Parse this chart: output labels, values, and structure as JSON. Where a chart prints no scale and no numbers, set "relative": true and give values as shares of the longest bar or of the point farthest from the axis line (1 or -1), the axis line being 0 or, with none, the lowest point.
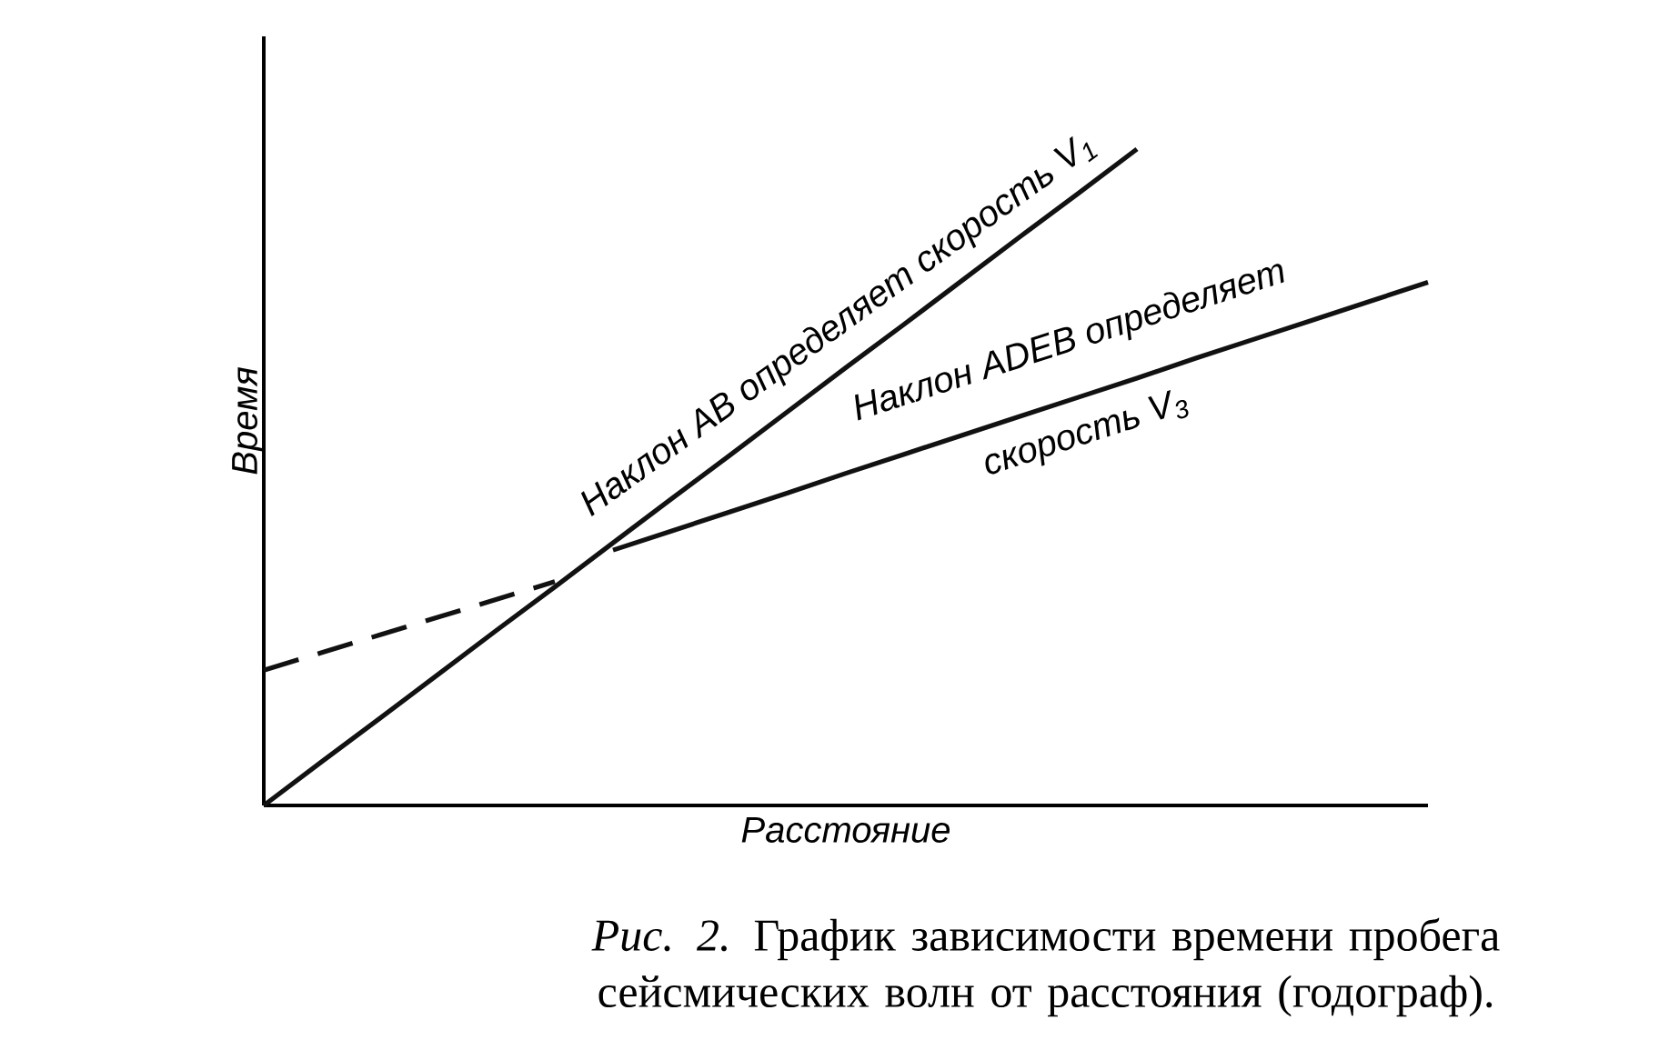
{
  "chart_data": {
    "type": "line",
    "relative": true,
    "xlabel": "Расстояние",
    "ylabel": "Время",
    "categories": [
      null,
      null,
      null,
      null,
      null,
      null,
      null,
      null,
      null,
      null,
      null,
      null,
      null,
      null,
      null,
      null,
      null,
      null,
      null,
      null,
      null
    ],
    "series": [
      {
        "values": [
          0,
          0.067,
          0.133,
          0.2,
          0.267,
          0.333,
          0.4,
          0.467,
          0.533,
          0.6,
          0.667,
          0.733,
          0.8,
          0.867,
          0.933,
          1,
          null,
          null,
          null,
          null,
          null
        ],
        "color": "#111111",
        "line_style": "solid"
      },
      {
        "values": [
          null,
          null,
          null,
          null,
          null,
          null,
          0.389,
          0.418,
          0.447,
          0.476,
          0.506,
          0.535,
          0.564,
          0.593,
          0.622,
          0.651,
          0.681,
          0.71,
          0.739,
          0.768,
          0.797
        ],
        "color": "#111111",
        "line_style": "solid"
      },
      {
        "values": [
          0.206,
          0.233,
          0.26,
          0.287,
          0.314,
          0.341,
          null,
          null,
          null,
          null,
          null,
          null,
          null,
          null,
          null,
          null,
          null,
          null,
          null,
          null,
          null
        ],
        "color": "#111111",
        "line_style": "dashed"
      }
    ],
    "annotations": [
      "Наклон AB определяет скорость V$_{1}$",
      "Наклон ADEB определяет",
      "скорость V$_{3}$",
      "*Рис. 2.* График зависимости времени пробега сейсмических волн от расстояния (годограф)."
    ]
  }
}
